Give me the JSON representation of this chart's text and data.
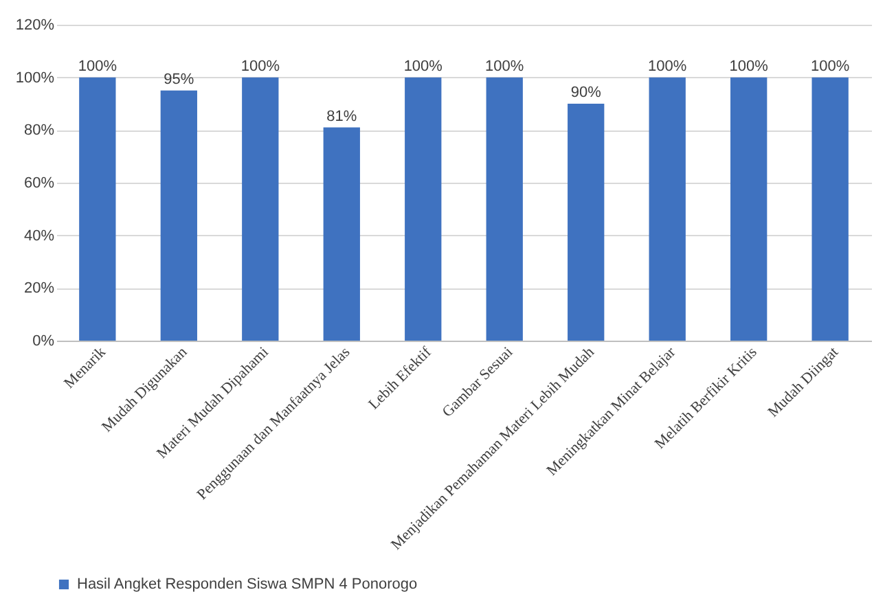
{
  "chart_data": {
    "type": "bar",
    "categories": [
      "Menarik",
      "Mudah Digunakan",
      "Materi Mudah Dipahami",
      "Penggunaan dan Manfaatnya Jelas",
      "Lebih Efektif",
      "Gambar Sesuai",
      "Menjadikan Pemahaman Materi Lebih Mudah",
      "Meningkatkan Minat Belajar",
      "Melatih Berfikir Kritis",
      "Mudah Diingat"
    ],
    "series": [
      {
        "name": "Hasil Angket Responden Siswa SMPN 4 Ponorogo",
        "color": "#3f72c0",
        "values": [
          100,
          95,
          100,
          81,
          100,
          100,
          90,
          100,
          100,
          100
        ],
        "value_labels": [
          "100%",
          "95%",
          "100%",
          "81%",
          "100%",
          "100%",
          "90%",
          "100%",
          "100%",
          "100%"
        ]
      }
    ],
    "ylim": [
      0,
      120
    ],
    "yticks": [
      {
        "value": 0,
        "label": "0%"
      },
      {
        "value": 20,
        "label": "20%"
      },
      {
        "value": 40,
        "label": "40%"
      },
      {
        "value": 60,
        "label": "60%"
      },
      {
        "value": 80,
        "label": "80%"
      },
      {
        "value": 100,
        "label": "100%"
      },
      {
        "value": 120,
        "label": "120%"
      }
    ],
    "grid": "y",
    "legend": "bottom"
  }
}
